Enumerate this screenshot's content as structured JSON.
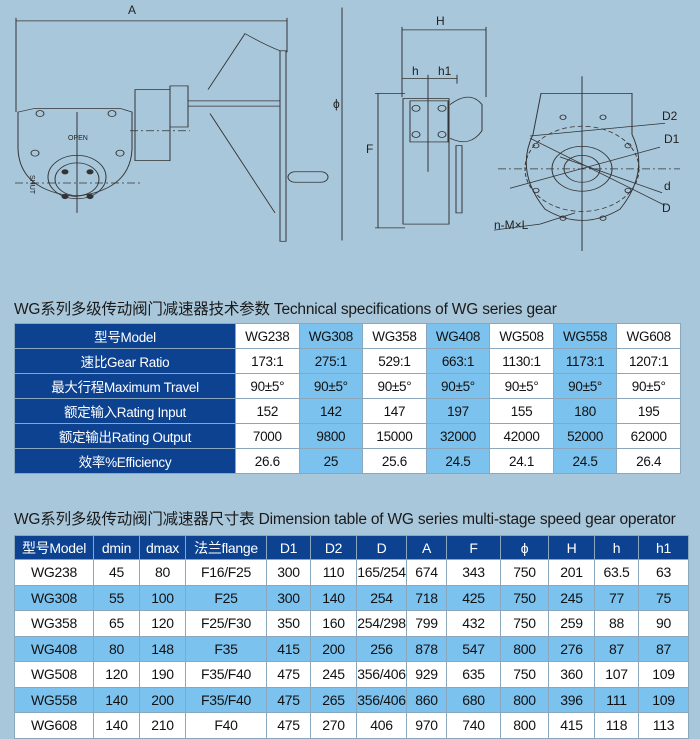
{
  "drawing": {
    "labels": {
      "A": "A",
      "phi": "ϕ",
      "H": "H",
      "h": "h",
      "h1": "h1",
      "F": "F",
      "D2": "D2",
      "D1": "D1",
      "d": "d",
      "D": "D",
      "nML": "n-M×L",
      "open": "OPEN",
      "shut": "SHUT"
    }
  },
  "spec_table": {
    "title": "WG系列多级传动阀门减速器技术参数 Technical specifications of WG series gear",
    "rows": [
      {
        "label": "型号Model",
        "values": [
          "WG238",
          "WG308",
          "WG358",
          "WG408",
          "WG508",
          "WG558",
          "WG608"
        ]
      },
      {
        "label": "速比Gear Ratio",
        "values": [
          "173:1",
          "275:1",
          "529:1",
          "663:1",
          "1130:1",
          "1173:1",
          "1207:1"
        ]
      },
      {
        "label": "最大行程Maximum Travel",
        "values": [
          "90±5°",
          "90±5°",
          "90±5°",
          "90±5°",
          "90±5°",
          "90±5°",
          "90±5°"
        ]
      },
      {
        "label": "额定输入Rating Input",
        "values": [
          "152",
          "142",
          "147",
          "197",
          "155",
          "180",
          "195"
        ]
      },
      {
        "label": "额定输出Rating Output",
        "values": [
          "7000",
          "9800",
          "15000",
          "32000",
          "42000",
          "52000",
          "62000"
        ]
      },
      {
        "label": "效率%Efficiency",
        "values": [
          "26.6",
          "25",
          "25.6",
          "24.5",
          "24.1",
          "24.5",
          "26.4"
        ]
      }
    ]
  },
  "dim_table": {
    "title": "WG系列多级传动阀门减速器尺寸表 Dimension table of WG series multi-stage speed gear operator",
    "headers": [
      "型号Model",
      "dmin",
      "dmax",
      "法兰flange",
      "D1",
      "D2",
      "D",
      "A",
      "F",
      "ϕ",
      "H",
      "h",
      "h1"
    ],
    "rows": [
      [
        "WG238",
        "45",
        "80",
        "F16/F25",
        "300",
        "110",
        "165/254",
        "674",
        "343",
        "750",
        "201",
        "63.5",
        "63"
      ],
      [
        "WG308",
        "55",
        "100",
        "F25",
        "300",
        "140",
        "254",
        "718",
        "425",
        "750",
        "245",
        "77",
        "75"
      ],
      [
        "WG358",
        "65",
        "120",
        "F25/F30",
        "350",
        "160",
        "254/298",
        "799",
        "432",
        "750",
        "259",
        "88",
        "90"
      ],
      [
        "WG408",
        "80",
        "148",
        "F35",
        "415",
        "200",
        "256",
        "878",
        "547",
        "800",
        "276",
        "87",
        "87"
      ],
      [
        "WG508",
        "120",
        "190",
        "F35/F40",
        "475",
        "245",
        "356/406",
        "929",
        "635",
        "750",
        "360",
        "107",
        "109"
      ],
      [
        "WG558",
        "140",
        "200",
        "F35/F40",
        "475",
        "265",
        "356/406",
        "860",
        "680",
        "800",
        "396",
        "111",
        "109"
      ],
      [
        "WG608",
        "140",
        "210",
        "F40",
        "475",
        "270",
        "406",
        "970",
        "740",
        "800",
        "415",
        "118",
        "113"
      ]
    ]
  },
  "colors": {
    "background": "#a9c7db",
    "header_navy": "#0d4291",
    "highlight_blue": "#7cc2ee",
    "white": "#ffffff"
  }
}
